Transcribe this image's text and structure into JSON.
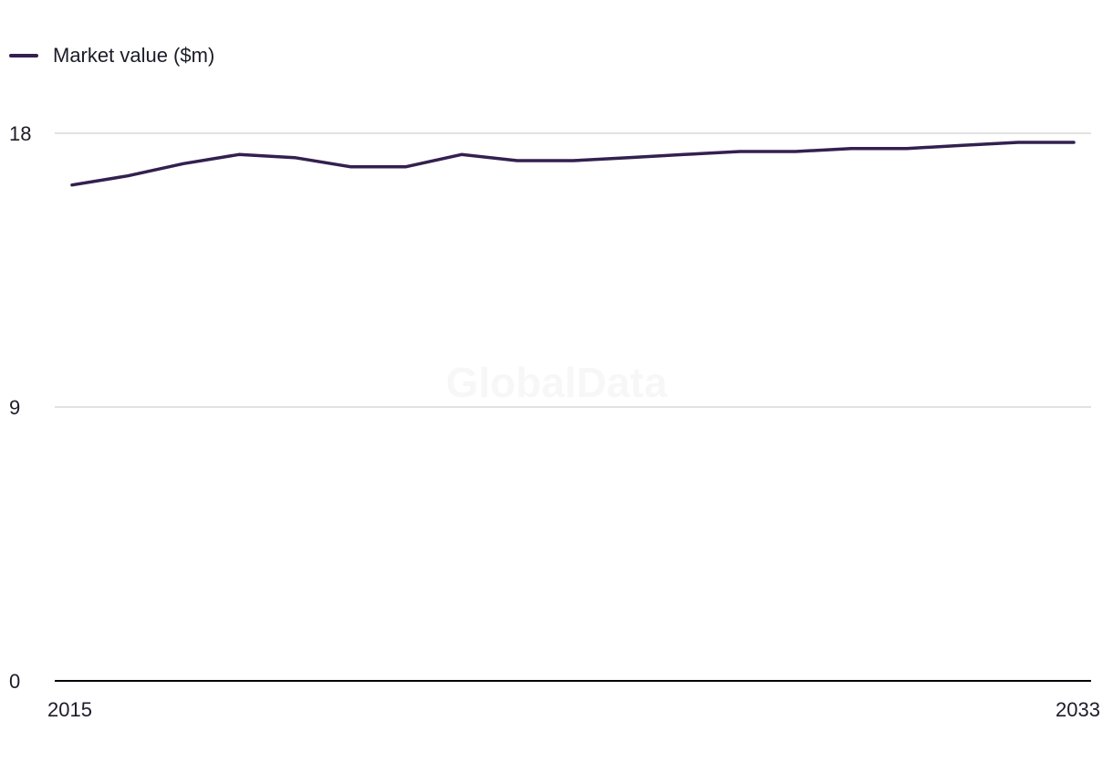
{
  "legend": {
    "label": "Market value ($m)"
  },
  "watermark": "GlobalData",
  "colors": {
    "series": "#33204f",
    "grid": "#d9d9d9",
    "axis": "#000000",
    "text": "#1c1c2a"
  },
  "chart_data": {
    "type": "line",
    "title": "",
    "xlabel": "",
    "ylabel": "",
    "x": [
      2015,
      2016,
      2017,
      2018,
      2019,
      2020,
      2021,
      2022,
      2023,
      2024,
      2025,
      2026,
      2027,
      2028,
      2029,
      2030,
      2031,
      2032,
      2033
    ],
    "x_tick_labels": [
      "2015",
      "2033"
    ],
    "y_ticks": [
      0,
      9,
      18
    ],
    "y_tick_labels": [
      "0",
      "9",
      "18"
    ],
    "ylim": [
      0,
      18
    ],
    "grid": true,
    "legend_position": "top-left",
    "series": [
      {
        "name": "Market value ($m)",
        "values": [
          16.3,
          16.6,
          17.0,
          17.3,
          17.2,
          16.9,
          16.9,
          17.3,
          17.1,
          17.1,
          17.2,
          17.3,
          17.4,
          17.4,
          17.5,
          17.5,
          17.6,
          17.7,
          17.7
        ]
      }
    ]
  }
}
